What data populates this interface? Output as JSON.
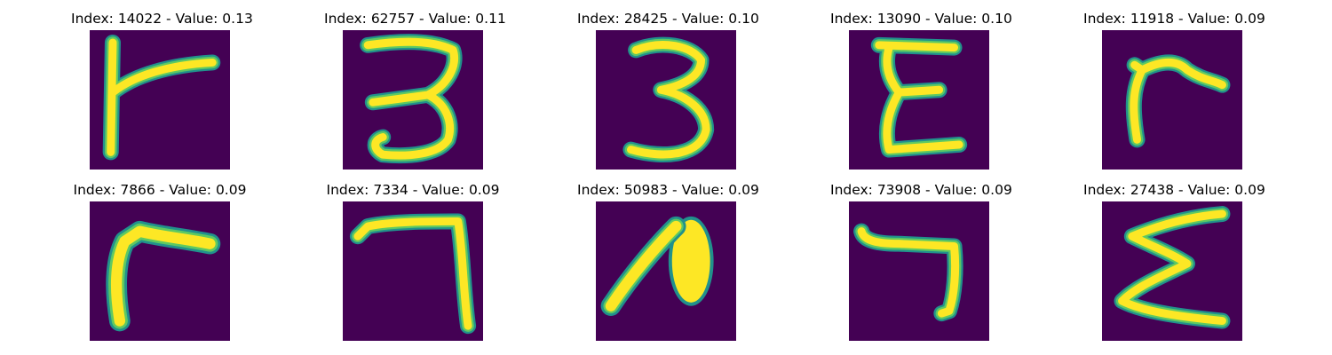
{
  "colors": {
    "background": "#440154",
    "stroke_outer": "#21918c",
    "stroke_mid": "#5ec962",
    "stroke_inner": "#fde725"
  },
  "panels": [
    {
      "title": "Index: 14022 - Value: 0.13",
      "glyph": "r-shape-thin"
    },
    {
      "title": "Index: 62757 - Value: 0.11",
      "glyph": "three"
    },
    {
      "title": "Index: 28425 - Value: 0.10",
      "glyph": "three"
    },
    {
      "title": "Index: 13090 - Value: 0.10",
      "glyph": "epsilon"
    },
    {
      "title": "Index: 11918 - Value: 0.09",
      "glyph": "r-shape"
    },
    {
      "title": "Index: 7866 - Value: 0.09",
      "glyph": "r-shape-bold"
    },
    {
      "title": "Index: 7334 - Value: 0.09",
      "glyph": "seven"
    },
    {
      "title": "Index: 50983 - Value: 0.09",
      "glyph": "a-shape"
    },
    {
      "title": "Index: 73908 - Value: 0.09",
      "glyph": "seven-slanted"
    },
    {
      "title": "Index: 27438 - Value: 0.09",
      "glyph": "sigma"
    }
  ]
}
